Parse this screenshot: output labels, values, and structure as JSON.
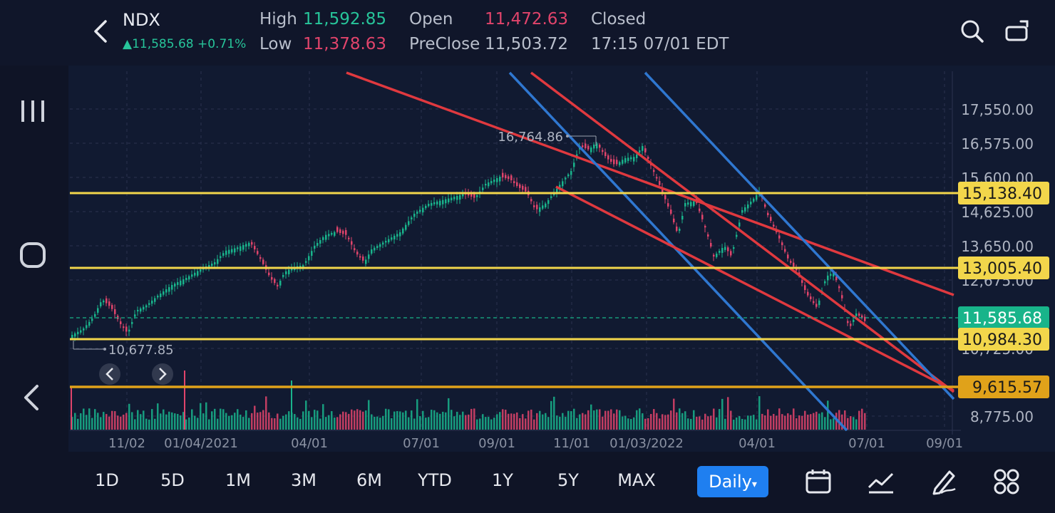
{
  "header": {
    "symbol": "NDX",
    "quote": "▲11,585.68 +0.71%",
    "high_label": "High",
    "high_value": "11,592.85",
    "low_label": "Low",
    "low_value": "11,378.63",
    "open_label": "Open",
    "open_value": "11,472.63",
    "preclose_label": "PreClose",
    "preclose_value": "11,503.72",
    "status": "Closed",
    "timestamp": "17:15 07/01 EDT"
  },
  "chart": {
    "price_ticks": [
      "17,550.00",
      "16,575.00",
      "15,600.00",
      "14,625.00",
      "13,650.00",
      "12,675.00",
      "10,725.00",
      "8,775.00"
    ],
    "date_ticks": [
      "11/02",
      "01/04/2021",
      "04/01",
      "07/01",
      "09/01",
      "11/01",
      "01/03/2022",
      "04/01",
      "07/01",
      "09/01"
    ],
    "high_marker": "16,764.86",
    "low_marker": "10,677.85",
    "levels": [
      {
        "label": "15,138.40",
        "color": "#f2d64b"
      },
      {
        "label": "13,005.40",
        "color": "#f2d64b"
      },
      {
        "label": "11,585.68",
        "color": "#18b48a"
      },
      {
        "label": "10,984.30",
        "color": "#f2d64b"
      },
      {
        "label": "9,615.57",
        "color": "#e0a21a"
      }
    ],
    "colors": {
      "up": "#19b48c",
      "down": "#e0446b",
      "support": "#f2d64b",
      "channel_red": "#e0393f",
      "channel_blue": "#2f77d0"
    }
  },
  "toolbar": {
    "timeframes": [
      "1D",
      "5D",
      "1M",
      "3M",
      "6M",
      "YTD",
      "1Y",
      "5Y",
      "MAX"
    ],
    "interval": "Daily",
    "icons": [
      "calendar-icon",
      "indicator-icon",
      "draw-tool-icon",
      "grid-menu-icon"
    ]
  }
}
